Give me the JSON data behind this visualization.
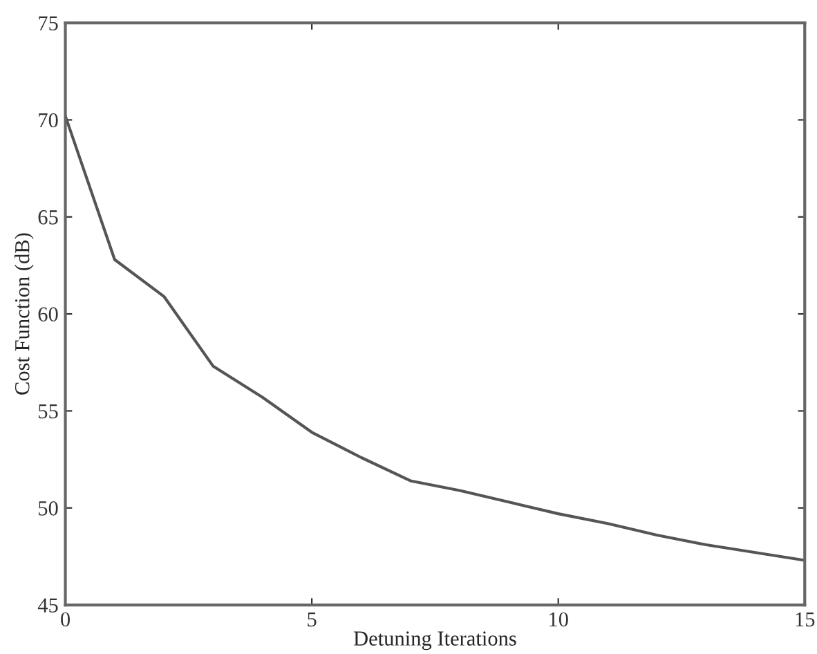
{
  "chart_data": {
    "type": "line",
    "xlabel": "Detuning Iterations",
    "ylabel": "Cost Function (dB)",
    "x": [
      0,
      1,
      2,
      3,
      4,
      5,
      6,
      7,
      8,
      9,
      10,
      11,
      12,
      13,
      14,
      15
    ],
    "series": [
      {
        "color": "#555555",
        "values": [
          70.2,
          62.8,
          60.9,
          57.3,
          55.7,
          53.9,
          52.6,
          51.4,
          50.9,
          50.3,
          49.7,
          49.2,
          48.6,
          48.1,
          47.7,
          47.3
        ]
      }
    ],
    "xlim": [
      0,
      15
    ],
    "xticks": [
      0,
      5,
      10,
      15
    ],
    "ylim": [
      45,
      75
    ],
    "yticks": [
      45,
      50,
      55,
      60,
      65,
      70,
      75
    ],
    "grid": false,
    "legend": false,
    "marker": "none",
    "line_style": "solid"
  }
}
